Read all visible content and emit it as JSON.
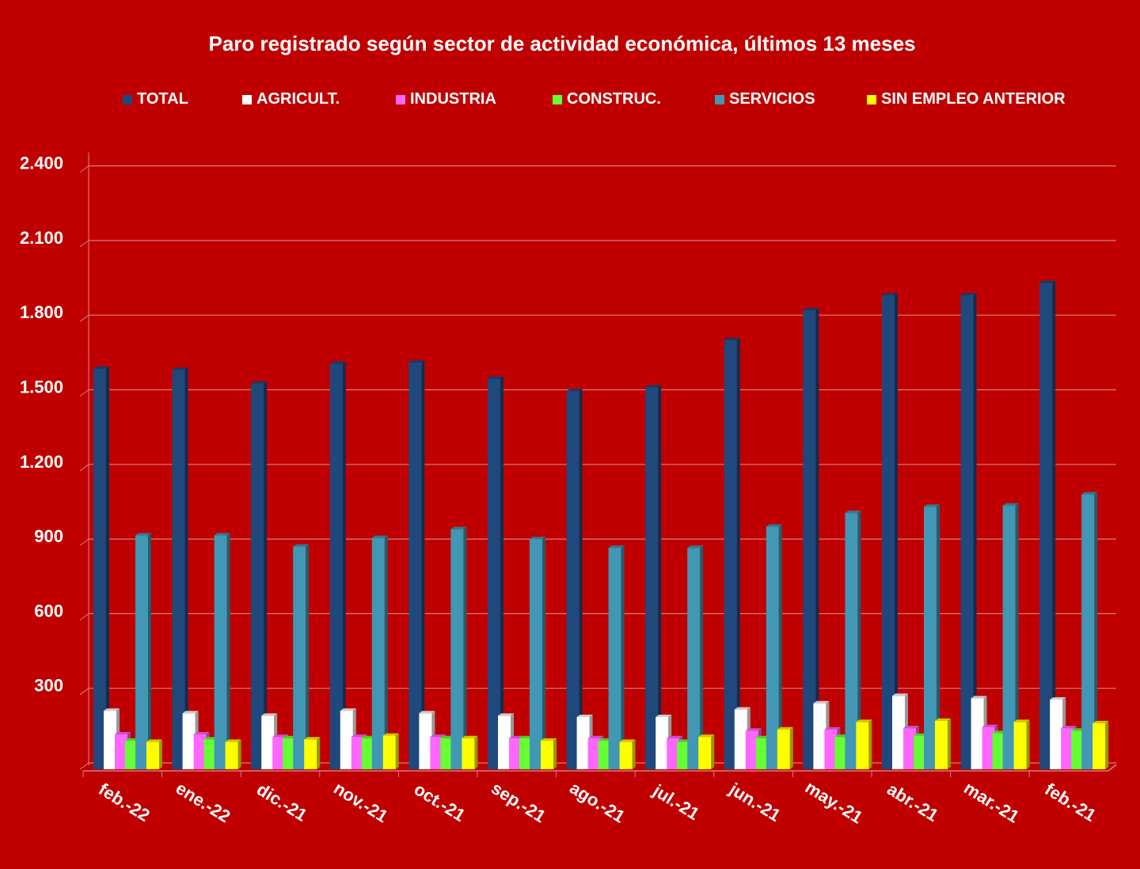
{
  "chart_data": {
    "type": "bar",
    "title": "Paro registrado según sector de actividad económica, últimos 13 meses",
    "xlabel": "",
    "ylabel": "",
    "ylim": [
      0,
      2400
    ],
    "yticks": [
      0,
      300,
      600,
      900,
      1200,
      1500,
      1800,
      2100,
      2400
    ],
    "ytick_labels": [
      "",
      "300",
      "600",
      "900",
      "1.200",
      "1.500",
      "1.800",
      "2.100",
      "2.400"
    ],
    "grid": true,
    "legend_position": "top",
    "categories": [
      "feb.-22",
      "ene.-22",
      "dic.-21",
      "nov.-21",
      "oct.-21",
      "sep.-21",
      "ago.-21",
      "jul.-21",
      "jun.-21",
      "may.-21",
      "abr.-21",
      "mar.-21",
      "feb.-21"
    ],
    "series": [
      {
        "name": "TOTAL",
        "color": "#1f497d",
        "values": [
          1610,
          1605,
          1550,
          1630,
          1635,
          1570,
          1520,
          1535,
          1725,
          1845,
          1905,
          1905,
          1955
        ]
      },
      {
        "name": "AGRICULT.",
        "color": "#ffffff",
        "values": [
          235,
          225,
          215,
          235,
          225,
          215,
          210,
          210,
          240,
          265,
          295,
          285,
          280
        ]
      },
      {
        "name": "INDUSTRIA",
        "color": "#ff66ff",
        "values": [
          140,
          140,
          130,
          130,
          130,
          125,
          125,
          125,
          155,
          160,
          165,
          170,
          165
        ]
      },
      {
        "name": "CONSTRUC.",
        "color": "#66ff33",
        "values": [
          115,
          120,
          125,
          125,
          125,
          125,
          115,
          110,
          125,
          130,
          135,
          145,
          155
        ]
      },
      {
        "name": "SERVICIOS",
        "color": "#4197b4",
        "values": [
          940,
          940,
          895,
          930,
          965,
          925,
          890,
          890,
          975,
          1030,
          1055,
          1060,
          1105
        ]
      },
      {
        "name": "SIN EMPLEO ANTERIOR",
        "color": "#ffff00",
        "values": [
          110,
          110,
          120,
          135,
          125,
          115,
          110,
          130,
          160,
          190,
          195,
          190,
          185
        ]
      }
    ]
  }
}
